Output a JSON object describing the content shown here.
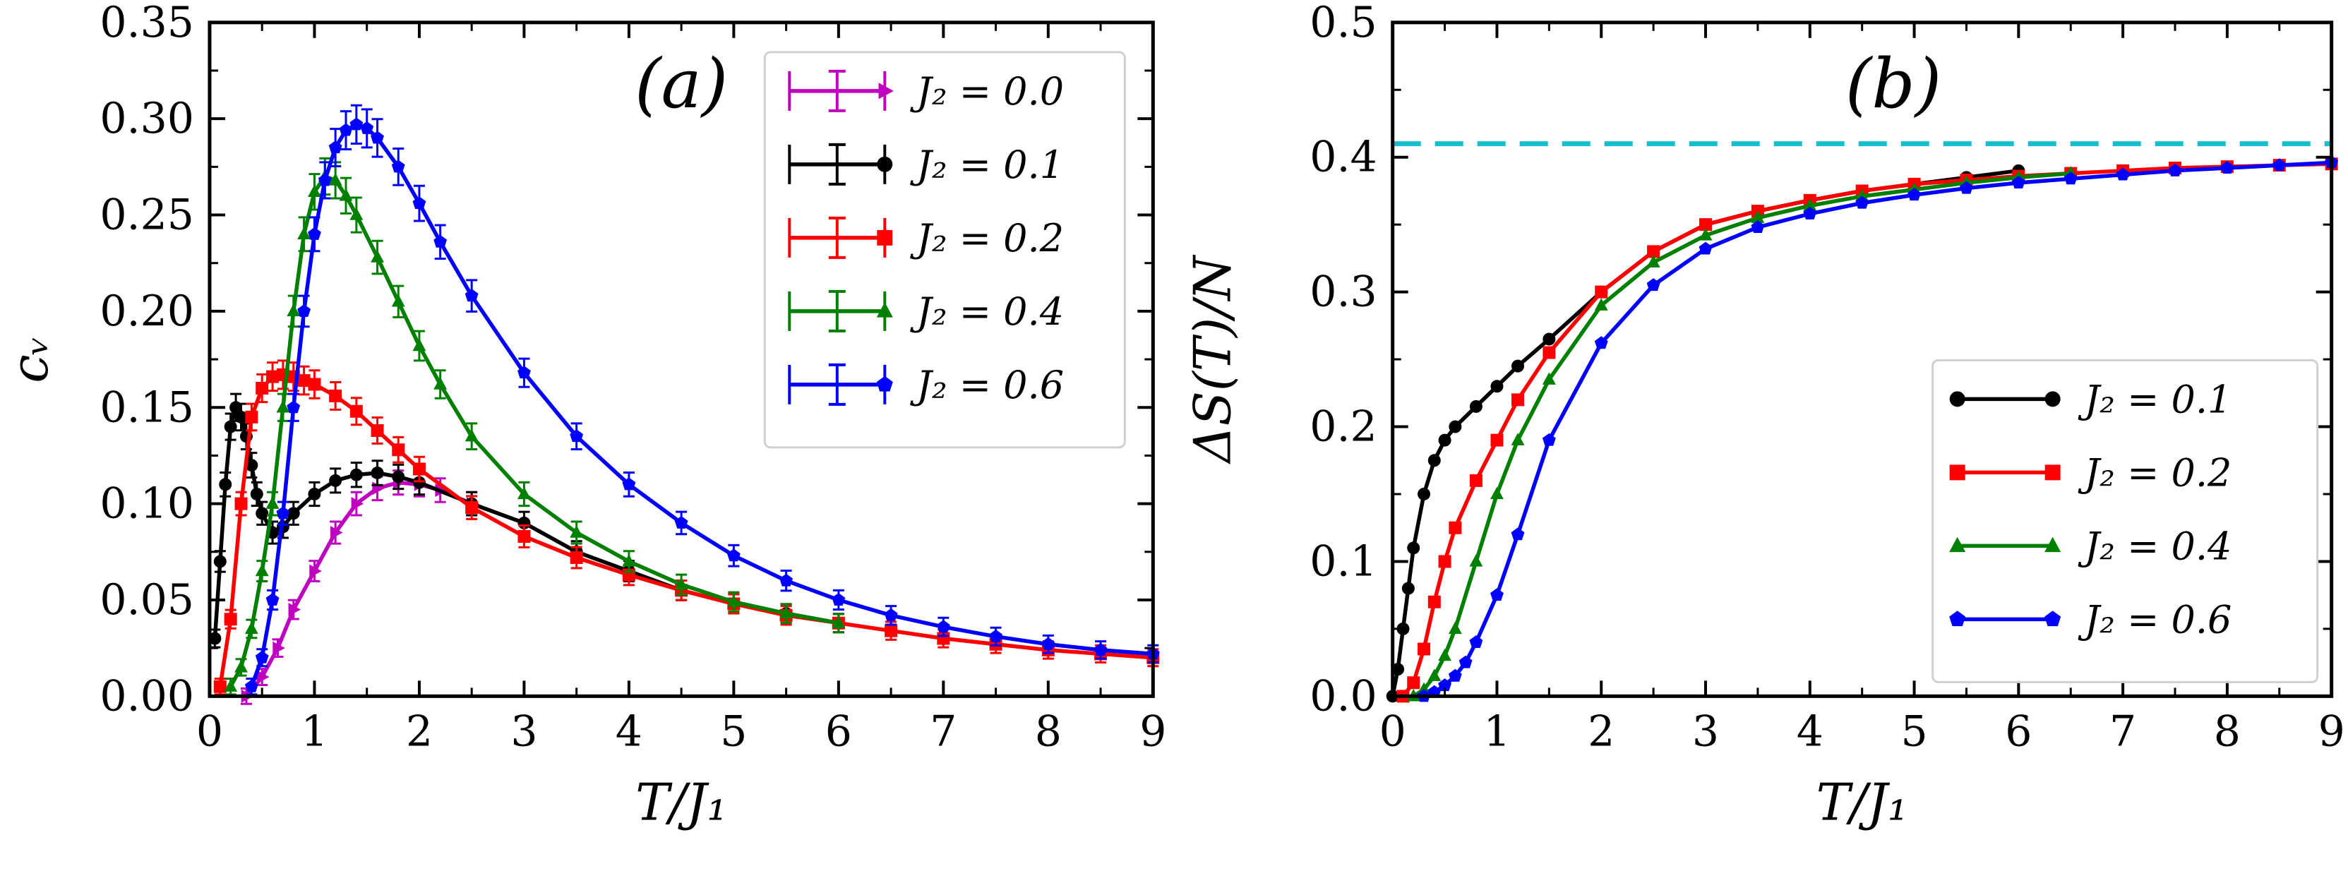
{
  "chart_data": [
    {
      "type": "line",
      "panel_label": "(a)",
      "xlabel": "T/J₁",
      "ylabel": "cᵥ",
      "xlim": [
        0,
        9
      ],
      "ylim": [
        0,
        0.35
      ],
      "xticks": [
        0,
        1,
        2,
        3,
        4,
        5,
        6,
        7,
        8,
        9
      ],
      "xtick_labels": [
        "0",
        "1",
        "2",
        "3",
        "4",
        "5",
        "6",
        "7",
        "8",
        "9"
      ],
      "yticks": [
        0,
        0.05,
        0.1,
        0.15,
        0.2,
        0.25,
        0.3,
        0.35
      ],
      "ytick_labels": [
        "0.00",
        "0.05",
        "0.10",
        "0.15",
        "0.20",
        "0.25",
        "0.30",
        "0.35"
      ],
      "legend_position": "top-right",
      "error_bars": true,
      "series": [
        {
          "name": "J₂ = 0.0",
          "color": "#bf00bf",
          "marker": "triangle-right",
          "x": [
            0.35,
            0.5,
            0.65,
            0.8,
            1.0,
            1.2,
            1.4,
            1.6,
            1.8,
            2.0,
            2.2,
            2.5
          ],
          "y": [
            0.0,
            0.01,
            0.025,
            0.045,
            0.065,
            0.085,
            0.1,
            0.108,
            0.111,
            0.11,
            0.107,
            0.1
          ]
        },
        {
          "name": "J₂ = 0.1",
          "color": "#000000",
          "marker": "circle",
          "x": [
            0.05,
            0.1,
            0.15,
            0.2,
            0.25,
            0.3,
            0.35,
            0.4,
            0.45,
            0.5,
            0.6,
            0.7,
            0.8,
            1.0,
            1.2,
            1.4,
            1.6,
            1.8,
            2.0,
            2.5,
            3.0,
            3.5,
            4.0,
            4.5,
            5.0,
            5.5,
            6.0
          ],
          "y": [
            0.03,
            0.07,
            0.11,
            0.14,
            0.15,
            0.145,
            0.135,
            0.12,
            0.105,
            0.095,
            0.085,
            0.088,
            0.095,
            0.105,
            0.112,
            0.115,
            0.116,
            0.114,
            0.111,
            0.1,
            0.09,
            0.075,
            0.065,
            0.055,
            0.048,
            0.043,
            0.038
          ]
        },
        {
          "name": "J₂ = 0.2",
          "color": "#ff0000",
          "marker": "square",
          "x": [
            0.1,
            0.2,
            0.3,
            0.4,
            0.5,
            0.6,
            0.7,
            0.8,
            0.9,
            1.0,
            1.2,
            1.4,
            1.6,
            1.8,
            2.0,
            2.5,
            3.0,
            3.5,
            4.0,
            4.5,
            5.0,
            5.5,
            6.0,
            6.5,
            7.0,
            7.5,
            8.0,
            8.5,
            9.0
          ],
          "y": [
            0.005,
            0.04,
            0.1,
            0.145,
            0.16,
            0.166,
            0.167,
            0.166,
            0.164,
            0.162,
            0.156,
            0.148,
            0.138,
            0.128,
            0.118,
            0.098,
            0.083,
            0.072,
            0.063,
            0.055,
            0.048,
            0.042,
            0.038,
            0.034,
            0.03,
            0.027,
            0.024,
            0.022,
            0.02
          ]
        },
        {
          "name": "J₂ = 0.4",
          "color": "#008000",
          "marker": "triangle-up",
          "x": [
            0.2,
            0.3,
            0.4,
            0.5,
            0.6,
            0.7,
            0.8,
            0.9,
            1.0,
            1.1,
            1.2,
            1.3,
            1.4,
            1.6,
            1.8,
            2.0,
            2.2,
            2.5,
            3.0,
            3.5,
            4.0,
            4.5,
            5.0,
            5.5,
            6.0
          ],
          "y": [
            0.005,
            0.015,
            0.035,
            0.065,
            0.1,
            0.15,
            0.2,
            0.24,
            0.262,
            0.27,
            0.268,
            0.26,
            0.25,
            0.228,
            0.205,
            0.182,
            0.162,
            0.135,
            0.105,
            0.085,
            0.07,
            0.058,
            0.049,
            0.043,
            0.038
          ]
        },
        {
          "name": "J₂ = 0.6",
          "color": "#0000ff",
          "marker": "pentagon",
          "x": [
            0.4,
            0.5,
            0.6,
            0.7,
            0.8,
            0.9,
            1.0,
            1.1,
            1.2,
            1.3,
            1.4,
            1.5,
            1.6,
            1.8,
            2.0,
            2.2,
            2.5,
            3.0,
            3.5,
            4.0,
            4.5,
            5.0,
            5.5,
            6.0,
            6.5,
            7.0,
            7.5,
            8.0,
            8.5,
            9.0
          ],
          "y": [
            0.005,
            0.02,
            0.05,
            0.095,
            0.15,
            0.2,
            0.24,
            0.268,
            0.285,
            0.294,
            0.297,
            0.295,
            0.29,
            0.275,
            0.256,
            0.236,
            0.208,
            0.168,
            0.135,
            0.11,
            0.09,
            0.073,
            0.06,
            0.05,
            0.042,
            0.036,
            0.031,
            0.027,
            0.024,
            0.022
          ]
        }
      ]
    },
    {
      "type": "line",
      "panel_label": "(b)",
      "xlabel": "T/J₁",
      "ylabel": "ΔS(T)/N",
      "xlim": [
        0,
        9
      ],
      "ylim": [
        0,
        0.5
      ],
      "xticks": [
        0,
        1,
        2,
        3,
        4,
        5,
        6,
        7,
        8,
        9
      ],
      "xtick_labels": [
        "0",
        "1",
        "2",
        "3",
        "4",
        "5",
        "6",
        "7",
        "8",
        "9"
      ],
      "yticks": [
        0,
        0.1,
        0.2,
        0.3,
        0.4,
        0.5
      ],
      "ytick_labels": [
        "0.0",
        "0.1",
        "0.2",
        "0.3",
        "0.4",
        "0.5"
      ],
      "reference_line": {
        "y": 0.41,
        "color": "#17becf",
        "style": "dashed"
      },
      "legend_position": "lower-right",
      "series": [
        {
          "name": "J₂ = 0.1",
          "color": "#000000",
          "marker": "circle",
          "x": [
            0.0,
            0.05,
            0.1,
            0.15,
            0.2,
            0.3,
            0.4,
            0.5,
            0.6,
            0.8,
            1.0,
            1.2,
            1.5,
            2.0,
            2.5,
            3.0,
            3.5,
            4.0,
            4.5,
            5.0,
            5.5,
            6.0
          ],
          "y": [
            0.0,
            0.02,
            0.05,
            0.08,
            0.11,
            0.15,
            0.175,
            0.19,
            0.2,
            0.215,
            0.23,
            0.245,
            0.265,
            0.3,
            0.33,
            0.35,
            0.36,
            0.368,
            0.375,
            0.38,
            0.385,
            0.39
          ]
        },
        {
          "name": "J₂ = 0.2",
          "color": "#ff0000",
          "marker": "square",
          "x": [
            0.1,
            0.2,
            0.3,
            0.4,
            0.5,
            0.6,
            0.8,
            1.0,
            1.2,
            1.5,
            2.0,
            2.5,
            3.0,
            3.5,
            4.0,
            4.5,
            5.0,
            5.5,
            6.0,
            6.5,
            7.0,
            7.5,
            8.0,
            8.5,
            9.0
          ],
          "y": [
            0.0,
            0.01,
            0.035,
            0.07,
            0.1,
            0.125,
            0.16,
            0.19,
            0.22,
            0.255,
            0.3,
            0.33,
            0.35,
            0.36,
            0.368,
            0.375,
            0.38,
            0.383,
            0.386,
            0.388,
            0.39,
            0.392,
            0.393,
            0.394,
            0.395
          ]
        },
        {
          "name": "J₂ = 0.4",
          "color": "#008000",
          "marker": "triangle-up",
          "x": [
            0.2,
            0.3,
            0.4,
            0.5,
            0.6,
            0.8,
            1.0,
            1.2,
            1.5,
            2.0,
            2.5,
            3.0,
            3.5,
            4.0,
            4.5,
            5.0,
            5.5,
            6.0,
            6.5
          ],
          "y": [
            0.0,
            0.005,
            0.015,
            0.03,
            0.05,
            0.1,
            0.15,
            0.19,
            0.235,
            0.29,
            0.322,
            0.342,
            0.355,
            0.364,
            0.371,
            0.376,
            0.381,
            0.385,
            0.388
          ]
        },
        {
          "name": "J₂ = 0.6",
          "color": "#0000ff",
          "marker": "pentagon",
          "x": [
            0.3,
            0.4,
            0.5,
            0.6,
            0.7,
            0.8,
            1.0,
            1.2,
            1.5,
            2.0,
            2.5,
            3.0,
            3.5,
            4.0,
            4.5,
            5.0,
            5.5,
            6.0,
            6.5,
            7.0,
            7.5,
            8.0,
            8.5,
            9.0
          ],
          "y": [
            0.0,
            0.003,
            0.008,
            0.015,
            0.025,
            0.04,
            0.075,
            0.12,
            0.19,
            0.262,
            0.305,
            0.332,
            0.348,
            0.358,
            0.366,
            0.372,
            0.377,
            0.381,
            0.384,
            0.387,
            0.39,
            0.392,
            0.394,
            0.396
          ]
        }
      ]
    }
  ]
}
